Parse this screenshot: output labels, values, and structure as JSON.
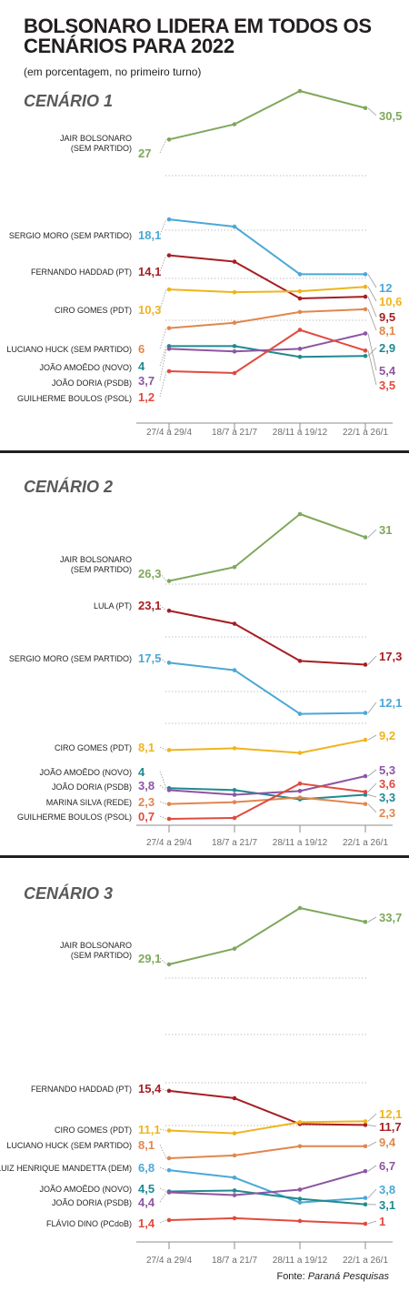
{
  "title": "BOLSONARO LIDERA EM TODOS OS CENÁRIOS PARA 2022",
  "subtitle": "(em porcentagem, no primeiro turno)",
  "source_label": "Fonte:",
  "source_name": "Paraná Pesquisas",
  "colors": {
    "bolsonaro": "#7fa85b",
    "moro": "#4ba8d6",
    "haddad_lula": "#a61e22",
    "ciro": "#f0b41c",
    "huck": "#e0874e",
    "amoedo": "#1f8a8f",
    "doria": "#8d55a3",
    "boulos_marina_dino": "#e14a3d",
    "marina": "#e0874e"
  },
  "chart_data": [
    {
      "type": "line",
      "title": "CENÁRIO 1",
      "x": [
        "27/4 a 29/4",
        "18/7 a 21/7",
        "28/11 a 19/12",
        "22/1 a 26/1"
      ],
      "series": [
        {
          "name": "JAIR BOLSONARO (SEM PARTIDO)",
          "color": "#7fa85b",
          "values": [
            27,
            28.7,
            32.4,
            30.5
          ],
          "first_label": "27",
          "last_label": "30,5"
        },
        {
          "name": "SERGIO MORO (SEM PARTIDO)",
          "color": "#4ba8d6",
          "values": [
            18.1,
            17.3,
            12.0,
            12.0
          ],
          "first_label": "18,1",
          "last_label": "12"
        },
        {
          "name": "FERNANDO HADDAD (PT)",
          "color": "#a61e22",
          "values": [
            14.1,
            13.4,
            9.3,
            9.5
          ],
          "first_label": "14,1",
          "last_label": "9,5"
        },
        {
          "name": "CIRO GOMES (PDT)",
          "color": "#f0b41c",
          "values": [
            10.3,
            10.0,
            10.1,
            10.6
          ],
          "first_label": "10,3",
          "last_label": "10,6"
        },
        {
          "name": "LUCIANO HUCK (SEM PARTIDO)",
          "color": "#e0874e",
          "values": [
            6,
            6.6,
            7.8,
            8.1
          ],
          "first_label": "6",
          "last_label": "8,1"
        },
        {
          "name": "JOÃO AMOÊDO (NOVO)",
          "color": "#1f8a8f",
          "values": [
            4,
            4,
            2.8,
            2.9
          ],
          "first_label": "4",
          "last_label": "2,9"
        },
        {
          "name": "JOÃO DORIA (PSDB)",
          "color": "#8d55a3",
          "values": [
            3.7,
            3.4,
            3.7,
            5.4
          ],
          "first_label": "3,7",
          "last_label": "5,4"
        },
        {
          "name": "GUILHERME BOULOS (PSOL)",
          "color": "#e14a3d",
          "values": [
            1.2,
            1.0,
            5.8,
            3.5
          ],
          "first_label": "1,2",
          "last_label": "3,5"
        }
      ]
    },
    {
      "type": "line",
      "title": "CENÁRIO 2",
      "x": [
        "27/4 a 29/4",
        "18/7 a 21/7",
        "28/11 a 19/12",
        "22/1 a 26/1"
      ],
      "series": [
        {
          "name": "JAIR BOLSONARO (SEM PARTIDO)",
          "color": "#7fa85b",
          "values": [
            26.3,
            27.8,
            33.5,
            31
          ],
          "first_label": "26,3",
          "last_label": "31"
        },
        {
          "name": "LULA (PT)",
          "color": "#a61e22",
          "values": [
            23.1,
            21.7,
            17.7,
            17.3
          ],
          "first_label": "23,1",
          "last_label": "17,3"
        },
        {
          "name": "SERGIO MORO (SEM PARTIDO)",
          "color": "#4ba8d6",
          "values": [
            17.5,
            16.7,
            12.0,
            12.1
          ],
          "first_label": "17,5",
          "last_label": "12,1"
        },
        {
          "name": "CIRO GOMES (PDT)",
          "color": "#f0b41c",
          "values": [
            8.1,
            8.3,
            7.8,
            9.2
          ],
          "first_label": "8,1",
          "last_label": "9,2"
        },
        {
          "name": "JOÃO AMOÊDO (NOVO)",
          "color": "#1f8a8f",
          "values": [
            4,
            3.8,
            2.8,
            3.3
          ],
          "first_label": "4",
          "last_label": "3,3"
        },
        {
          "name": "JOÃO DORIA (PSDB)",
          "color": "#8d55a3",
          "values": [
            3.8,
            3.3,
            3.7,
            5.3
          ],
          "first_label": "3,8",
          "last_label": "5,3"
        },
        {
          "name": "MARINA SILVA (REDE)",
          "color": "#e0874e",
          "values": [
            2.3,
            2.5,
            3.0,
            2.3
          ],
          "first_label": "2,3",
          "last_label": "2,3"
        },
        {
          "name": "GUILHERME BOULOS (PSOL)",
          "color": "#e14a3d",
          "values": [
            0.7,
            0.8,
            4.5,
            3.6
          ],
          "first_label": "0,7",
          "last_label": "3,6"
        }
      ]
    },
    {
      "type": "line",
      "title": "CENÁRIO 3",
      "x": [
        "27/4 a 29/4",
        "18/7 a 21/7",
        "28/11 a 19/12",
        "22/1 a 26/1"
      ],
      "series": [
        {
          "name": "JAIR BOLSONARO (SEM PARTIDO)",
          "color": "#7fa85b",
          "values": [
            29.1,
            30.8,
            35.2,
            33.7
          ],
          "first_label": "29,1",
          "last_label": "33,7"
        },
        {
          "name": "FERNANDO HADDAD (PT)",
          "color": "#a61e22",
          "values": [
            15.4,
            14.6,
            11.8,
            11.7
          ],
          "first_label": "15,4",
          "last_label": "11,7"
        },
        {
          "name": "CIRO GOMES (PDT)",
          "color": "#f0b41c",
          "values": [
            11.1,
            10.8,
            12.0,
            12.1
          ],
          "first_label": "11,1",
          "last_label": "12,1"
        },
        {
          "name": "LUCIANO HUCK (SEM PARTIDO)",
          "color": "#e0874e",
          "values": [
            8.1,
            8.4,
            9.4,
            9.4
          ],
          "first_label": "8,1",
          "last_label": "9,4"
        },
        {
          "name": "LUIZ HENRIQUE MANDETTA (DEM)",
          "color": "#4ba8d6",
          "values": [
            6.8,
            6.0,
            3.3,
            3.8
          ],
          "first_label": "6,8",
          "last_label": "3,8"
        },
        {
          "name": "JOÃO AMOÊDO (NOVO)",
          "color": "#1f8a8f",
          "values": [
            4.5,
            4.6,
            3.7,
            3.1
          ],
          "first_label": "4,5",
          "last_label": "3,1"
        },
        {
          "name": "JOÃO DORIA (PSDB)",
          "color": "#8d55a3",
          "values": [
            4.4,
            4.1,
            4.7,
            6.7
          ],
          "first_label": "4,4",
          "last_label": "6,7"
        },
        {
          "name": "FLÁVIO DINO (PCdoB)",
          "color": "#e14a3d",
          "values": [
            1.4,
            1.6,
            1.3,
            1.0
          ],
          "first_label": "1,4",
          "last_label": "1"
        }
      ]
    }
  ]
}
